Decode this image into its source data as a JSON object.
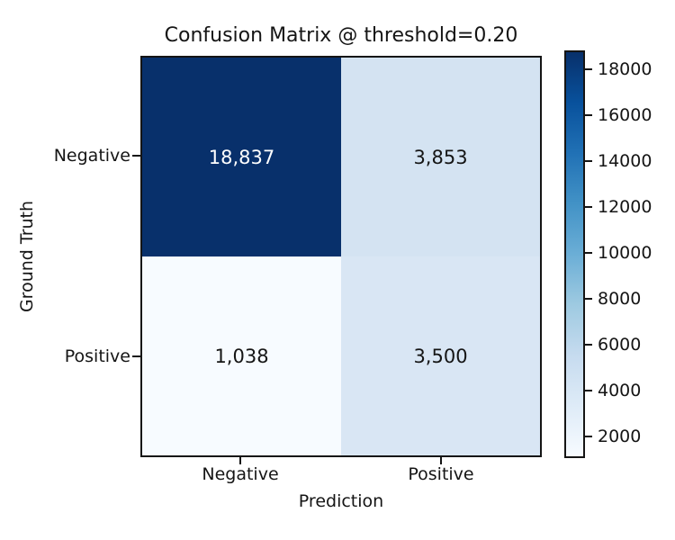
{
  "chart_data": {
    "type": "heatmap",
    "title": "Confusion Matrix @ threshold=0.20",
    "xlabel": "Prediction",
    "ylabel": "Ground Truth",
    "x_categories": [
      "Negative",
      "Positive"
    ],
    "y_categories": [
      "Negative",
      "Positive"
    ],
    "matrix": [
      [
        18837,
        3853
      ],
      [
        1038,
        3500
      ]
    ],
    "cell_labels": [
      [
        "18,837",
        "3,853"
      ],
      [
        "1,038",
        "3,500"
      ]
    ],
    "cell_colors": [
      [
        "#08306b",
        "#d4e3f2"
      ],
      [
        "#f7fbff",
        "#d9e6f4"
      ]
    ],
    "cell_text_colors": [
      [
        "#ffffff",
        "#151515"
      ],
      [
        "#151515",
        "#151515"
      ]
    ],
    "colormap": "Blues",
    "grid": false,
    "legend": "colorbar-right",
    "colorbar": {
      "vmin": 1038,
      "vmax": 18837,
      "ticks": [
        2000,
        4000,
        6000,
        8000,
        10000,
        12000,
        14000,
        16000,
        18000
      ],
      "gradient_low_to_high": [
        "#f7fbff",
        "#deebf7",
        "#c6dbef",
        "#9ecae1",
        "#6baed6",
        "#4292c6",
        "#2171b5",
        "#08519c",
        "#08306b"
      ]
    }
  }
}
